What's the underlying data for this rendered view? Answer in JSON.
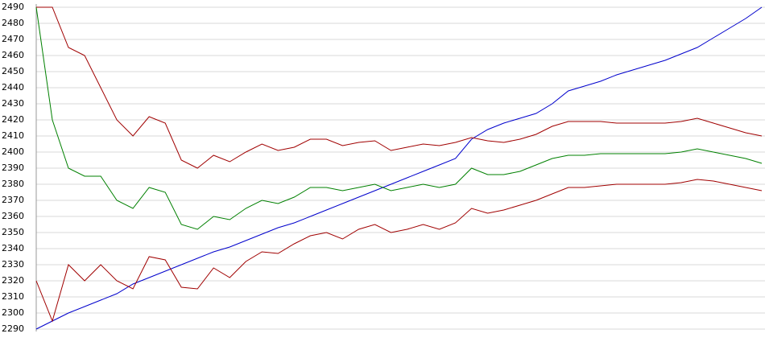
{
  "chart_data": {
    "type": "line",
    "categories": [
      null,
      null,
      null,
      null,
      null,
      null,
      null,
      null,
      null,
      null,
      null,
      null,
      null,
      null,
      null,
      null,
      null,
      null,
      null,
      null,
      null,
      null,
      null,
      null,
      null,
      null,
      null,
      null,
      null,
      null,
      null,
      null,
      null,
      null,
      null,
      null,
      null,
      null,
      null,
      null,
      null,
      null,
      null,
      null,
      null,
      null
    ],
    "ylim": [
      2290,
      2490
    ],
    "yticks": [
      2290,
      2300,
      2310,
      2320,
      2330,
      2340,
      2350,
      2360,
      2370,
      2380,
      2390,
      2400,
      2410,
      2420,
      2430,
      2440,
      2450,
      2460,
      2470,
      2480,
      2490
    ],
    "grid": true,
    "series": [
      {
        "color": "#0000cc",
        "values": [
          2290,
          2295,
          2300,
          2304,
          2308,
          2312,
          2318,
          2322,
          2326,
          2330,
          2334,
          2338,
          2341,
          2345,
          2349,
          2353,
          2356,
          2360,
          2364,
          2368,
          2372,
          2376,
          2380,
          2384,
          2388,
          2392,
          2396,
          2408,
          2414,
          2418,
          2421,
          2424,
          2430,
          2438,
          2441,
          2444,
          2448,
          2451,
          2454,
          2457,
          2461,
          2465,
          2471,
          2477,
          2483,
          2490
        ]
      },
      {
        "color": "#008000",
        "values": [
          2490,
          2420,
          2390,
          2385,
          2385,
          2370,
          2365,
          2378,
          2375,
          2355,
          2352,
          2360,
          2358,
          2365,
          2370,
          2368,
          2372,
          2378,
          2378,
          2376,
          2378,
          2380,
          2376,
          2378,
          2380,
          2378,
          2380,
          2390,
          2386,
          2386,
          2388,
          2392,
          2396,
          2398,
          2398,
          2399,
          2399,
          2399,
          2399,
          2399,
          2400,
          2402,
          2400,
          2398,
          2396,
          2393
        ]
      },
      {
        "color": "#a00000",
        "values": [
          2490,
          2490,
          2465,
          2460,
          2440,
          2420,
          2410,
          2422,
          2418,
          2395,
          2390,
          2398,
          2394,
          2400,
          2405,
          2401,
          2403,
          2408,
          2408,
          2404,
          2406,
          2407,
          2401,
          2403,
          2405,
          2404,
          2406,
          2409,
          2407,
          2406,
          2408,
          2411,
          2416,
          2419,
          2419,
          2419,
          2418,
          2418,
          2418,
          2418,
          2419,
          2421,
          2418,
          2415,
          2412,
          2410
        ]
      },
      {
        "color": "#a00000",
        "values": [
          2320,
          2295,
          2330,
          2320,
          2330,
          2320,
          2315,
          2335,
          2333,
          2316,
          2315,
          2328,
          2322,
          2332,
          2338,
          2337,
          2343,
          2348,
          2350,
          2346,
          2352,
          2355,
          2350,
          2352,
          2355,
          2352,
          2356,
          2365,
          2362,
          2364,
          2367,
          2370,
          2374,
          2378,
          2378,
          2379,
          2380,
          2380,
          2380,
          2380,
          2381,
          2383,
          2382,
          2380,
          2378,
          2376
        ]
      }
    ]
  }
}
